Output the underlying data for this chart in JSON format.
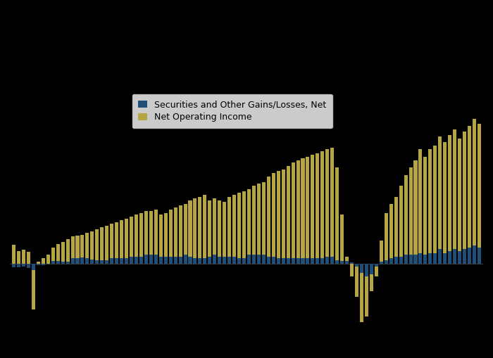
{
  "background_color": "#000000",
  "plot_bg_color": "#000000",
  "legend_bg_color": "#ffffff",
  "securities_color": "#1f4e79",
  "noi_color": "#b5a642",
  "legend_label_securities": "Securities and Other Gains/Losses, Net",
  "legend_label_noi": "Net Operating Income",
  "net_operating_income": [
    5.2,
    3.5,
    3.8,
    3.3,
    -12.5,
    0.5,
    1.5,
    2.5,
    4.5,
    5.5,
    6.0,
    6.8,
    7.5,
    7.8,
    8.0,
    8.5,
    9.0,
    9.5,
    10.0,
    10.5,
    11.0,
    11.5,
    12.0,
    12.5,
    13.0,
    13.5,
    14.0,
    14.5,
    14.5,
    15.0,
    13.5,
    14.0,
    15.0,
    15.5,
    16.0,
    16.5,
    17.5,
    18.0,
    18.5,
    19.0,
    17.5,
    18.0,
    17.5,
    17.0,
    18.5,
    19.0,
    19.5,
    20.0,
    20.5,
    21.5,
    22.0,
    22.5,
    24.0,
    25.0,
    25.5,
    26.0,
    27.0,
    28.0,
    28.5,
    29.0,
    29.5,
    30.0,
    30.5,
    31.0,
    31.5,
    32.0,
    26.5,
    13.5,
    2.0,
    -3.5,
    -9.0,
    -16.0,
    -14.5,
    -7.5,
    -3.5,
    6.5,
    14.0,
    16.5,
    18.5,
    21.5,
    24.5,
    26.5,
    28.5,
    31.5,
    29.5,
    31.5,
    32.5,
    35.0,
    33.5,
    35.5,
    37.0,
    34.5,
    36.5,
    38.0,
    40.0,
    38.5
  ],
  "securities_gains": [
    -1.0,
    -1.0,
    -0.8,
    -1.2,
    -1.8,
    -0.4,
    -0.3,
    -0.2,
    0.8,
    0.7,
    0.5,
    0.5,
    1.5,
    1.5,
    1.8,
    1.5,
    1.2,
    1.0,
    1.0,
    1.0,
    1.5,
    1.5,
    1.5,
    1.5,
    2.0,
    2.0,
    2.0,
    2.5,
    2.5,
    2.5,
    2.0,
    2.0,
    2.0,
    2.0,
    2.0,
    2.5,
    2.0,
    1.5,
    1.5,
    1.5,
    2.0,
    2.5,
    2.0,
    2.0,
    2.0,
    2.0,
    1.5,
    1.5,
    2.5,
    2.5,
    2.5,
    2.5,
    2.0,
    2.0,
    1.5,
    1.5,
    1.5,
    1.5,
    1.5,
    1.5,
    1.5,
    1.5,
    1.5,
    1.5,
    2.0,
    2.0,
    1.0,
    0.8,
    0.8,
    0.4,
    -0.8,
    -2.5,
    -3.5,
    -2.8,
    -0.8,
    0.5,
    1.0,
    1.5,
    2.0,
    2.0,
    2.5,
    2.5,
    2.5,
    3.0,
    2.5,
    3.0,
    3.0,
    4.0,
    3.0,
    3.5,
    4.0,
    3.5,
    4.0,
    4.5,
    5.0,
    4.5
  ],
  "ylim": [
    -22,
    48
  ],
  "bar_width": 0.72
}
